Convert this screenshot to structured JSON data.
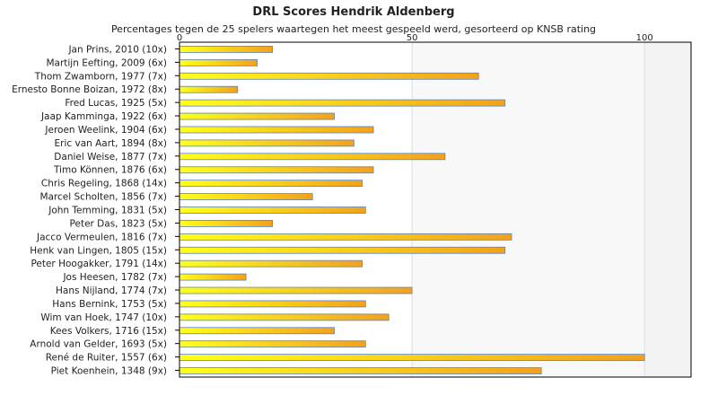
{
  "chart_data": {
    "type": "bar",
    "orientation": "horizontal",
    "title": "DRL Scores Hendrik Aldenberg",
    "subtitle": "Percentages tegen de 25 spelers waartegen het meest gespeeld werd, gesorteerd op KNSB rating",
    "xlim": [
      0,
      110
    ],
    "xticks": [
      "0",
      "50",
      "100"
    ],
    "grid": true,
    "categories": [
      "Jan Prins, 2010 (10x)",
      "Martijn Eefting, 2009 (6x)",
      "Thom Zwamborn, 1977 (7x)",
      "Ernesto Bonne Boizan, 1972 (8x)",
      "Fred Lucas, 1925 (5x)",
      "Jaap Kamminga, 1922 (6x)",
      "Jeroen Weelink, 1904 (6x)",
      "Eric van Aart, 1894 (8x)",
      "Daniel Weise, 1877 (7x)",
      "Timo Können, 1876 (6x)",
      "Chris Regeling, 1868 (14x)",
      "Marcel Scholten, 1856 (7x)",
      "John Temming, 1831 (5x)",
      "Peter Das, 1823 (5x)",
      "Jacco Vermeulen, 1816 (7x)",
      "Henk van Lingen, 1805 (15x)",
      "Peter Hoogakker, 1791 (14x)",
      "Jos Heesen, 1782 (7x)",
      "Hans Nijland, 1774 (7x)",
      "Hans Bernink, 1753 (5x)",
      "Wim van Hoek, 1747 (10x)",
      "Kees Volkers, 1716 (15x)",
      "Arnold van Gelder, 1693 (5x)",
      "René de Ruiter, 1557 (6x)",
      "Piet Koenhein, 1348 (9x)"
    ],
    "values": [
      20,
      16.7,
      64.3,
      12.5,
      70,
      33.3,
      41.7,
      37.5,
      57.1,
      41.7,
      39.3,
      28.6,
      40,
      20,
      71.4,
      70,
      39.3,
      14.3,
      50,
      40,
      45,
      33.3,
      40,
      100,
      77.8
    ],
    "colors": {
      "bar_start": "#ffff1a",
      "bar_end": "#f2a11e",
      "bar_stroke": "#5e84b6",
      "grid": "#dddddd",
      "shade": "#f3f3f3"
    }
  }
}
